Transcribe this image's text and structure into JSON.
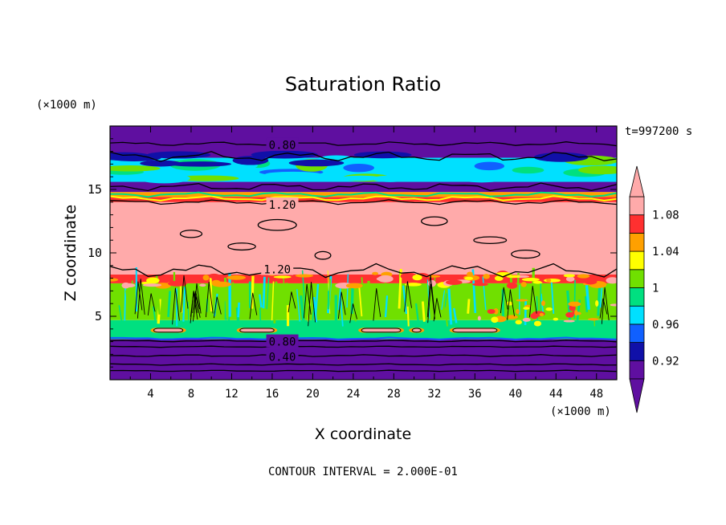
{
  "chart_data": {
    "type": "heatmap",
    "title": "Saturation Ratio",
    "time_label": "t=997200 s",
    "xlabel": "X coordinate",
    "ylabel": "Z coordinate",
    "x_unit": "(×1000 m)",
    "y_unit": "(×1000 m)",
    "xlim": [
      0,
      50
    ],
    "ylim": [
      0,
      20
    ],
    "x_ticks": [
      4,
      8,
      12,
      16,
      20,
      24,
      28,
      32,
      36,
      40,
      44,
      48
    ],
    "y_ticks": [
      5,
      10,
      15
    ],
    "contour_interval_text": "CONTOUR INTERVAL = 2.000E-01",
    "colorbar": {
      "labels": [
        "1.08",
        "1.04",
        "1",
        "0.96",
        "0.92"
      ],
      "label_values": [
        1.08,
        1.04,
        1.0,
        0.96,
        0.92
      ],
      "min": 0.9,
      "max": 1.1,
      "levels": [
        {
          "from": 0.9,
          "to": 0.92,
          "color": "#5f0fa0"
        },
        {
          "from": 0.92,
          "to": 0.94,
          "color": "#1010a8"
        },
        {
          "from": 0.94,
          "to": 0.96,
          "color": "#1060ff"
        },
        {
          "from": 0.96,
          "to": 0.98,
          "color": "#00e0ff"
        },
        {
          "from": 0.98,
          "to": 1.0,
          "color": "#00e080"
        },
        {
          "from": 1.0,
          "to": 1.02,
          "color": "#70e000"
        },
        {
          "from": 1.02,
          "to": 1.04,
          "color": "#ffff00"
        },
        {
          "from": 1.04,
          "to": 1.06,
          "color": "#ffa000"
        },
        {
          "from": 1.06,
          "to": 1.08,
          "color": "#ff3030"
        },
        {
          "from": 1.08,
          "to": 1.1,
          "color": "#ffaaaa"
        }
      ]
    },
    "bands": [
      {
        "z_from": 0.0,
        "z_to": 3.2,
        "value": 0.4,
        "color": "#5f0fa0"
      },
      {
        "z_from": 3.2,
        "z_to": 4.7,
        "value": 0.98,
        "color": "#00e080"
      },
      {
        "z_from": 4.7,
        "z_to": 7.6,
        "value": 1.0,
        "color": "#70e000"
      },
      {
        "z_from": 7.6,
        "z_to": 8.3,
        "value": 1.06,
        "color": "#ff3030"
      },
      {
        "z_from": 8.3,
        "z_to": 14.0,
        "value": 1.2,
        "color": "#ffaaaa"
      },
      {
        "z_from": 14.0,
        "z_to": 14.4,
        "value": 1.06,
        "color": "#ff3030"
      },
      {
        "z_from": 14.4,
        "z_to": 14.8,
        "value": 1.04,
        "color": "#ffa000"
      },
      {
        "z_from": 14.8,
        "z_to": 15.6,
        "value": 0.92,
        "color": "#5f0fa0"
      },
      {
        "z_from": 15.6,
        "z_to": 17.5,
        "value": 0.97,
        "color": "#00e0ff"
      },
      {
        "z_from": 17.5,
        "z_to": 20.0,
        "value": 0.8,
        "color": "#5f0fa0"
      }
    ],
    "contour_labels": [
      {
        "text": "0.80",
        "x": 17.0,
        "z": 18.5
      },
      {
        "text": "1.20",
        "x": 17.0,
        "z": 13.8
      },
      {
        "text": "1.20",
        "x": 16.5,
        "z": 8.7
      },
      {
        "text": "0.80",
        "x": 17.0,
        "z": 3.0
      },
      {
        "text": "0.40",
        "x": 17.0,
        "z": 1.8
      }
    ]
  }
}
